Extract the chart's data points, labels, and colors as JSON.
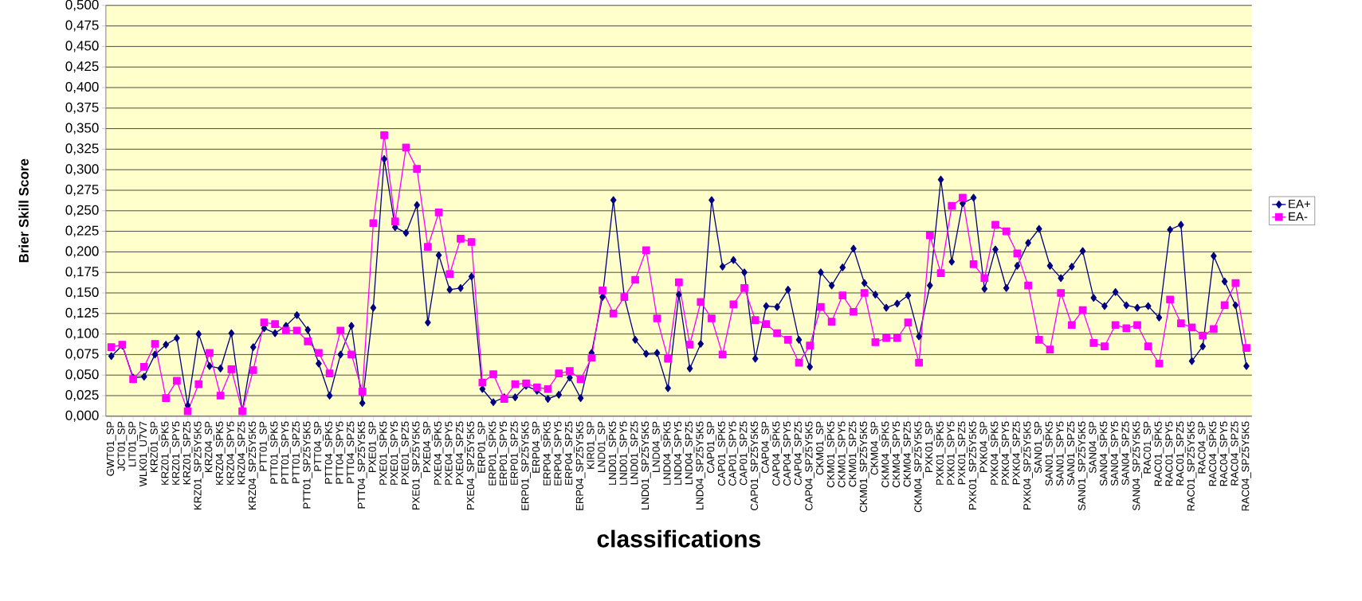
{
  "chart_data": {
    "type": "line",
    "xlabel": "classifications",
    "ylabel": "Brier Skill Score",
    "categories": [
      "GWT01_SP",
      "JCT01_SP",
      "LIT01_SP",
      "WLK01_U7V7",
      "KRZ01_SP",
      "KRZ01_SPK5",
      "KRZ01_SPY5",
      "KRZ01_SPZ5",
      "KRZ01_SPZ5Y5K5",
      "KRZ04_SP",
      "KRZ04_SPK5",
      "KRZ04_SPY5",
      "KRZ04_SPZ5",
      "KRZ04_SPZ5Y5K5",
      "PTT01_SP",
      "PTT01_SPK5",
      "PTT01_SPY5",
      "PTT01_SPZ5",
      "PTT01_SPZ5Y5K5",
      "PTT04_SP",
      "PTT04_SPK5",
      "PTT04_SPY5",
      "PTT04_SPZ5",
      "PTT04_SPZ5Y5K5",
      "PXE01_SP",
      "PXE01_SPK5",
      "PXE01_SPY5",
      "PXE01_SPZ5",
      "PXE01_SPZ5Y5K5",
      "PXE04_SP",
      "PXE04_SPK5",
      "PXE04_SPY5",
      "PXE04_SPZ5",
      "PXE04_SPZ5Y5K5",
      "ERP01_SP",
      "ERP01_SPK5",
      "ERP01_SPY5",
      "ERP01_SPZ5",
      "ERP01_SPZ5Y5K5",
      "ERP04_SP",
      "ERP04_SPK5",
      "ERP04_SPY5",
      "ERP04_SPZ5",
      "ERP04_SPZ5Y5K5",
      "KIR01_SP",
      "LND01_SP",
      "LND01_SPK5",
      "LND01_SPY5",
      "LND01_SPZ5",
      "LND01_SPZ5Y5K5",
      "LND04_SP",
      "LND04_SPK5",
      "LND04_SPY5",
      "LND04_SPZ5",
      "LND04_SPZ5Y5K5",
      "CAP01_SP",
      "CAP01_SPK5",
      "CAP01_SPY5",
      "CAP01_SPZ5",
      "CAP01_SPZ5Y5K5",
      "CAP04_SP",
      "CAP04_SPK5",
      "CAP04_SPY5",
      "CAP04_SPZ5",
      "CAP04_SPZ5Y5K5",
      "CKM01_SP",
      "CKM01_SPK5",
      "CKM01_SPY5",
      "CKM01_SPZ5",
      "CKM01_SPZ5Y5K5",
      "CKM04_SP",
      "CKM04_SPK5",
      "CKM04_SPY5",
      "CKM04_SPZ5",
      "CKM04_SPZ5Y5K5",
      "PXK01_SP",
      "PXK01_SPK5",
      "PXK01_SPY5",
      "PXK01_SPZ5",
      "PXK01_SPZ5Y5K5",
      "PXK04_SP",
      "PXK04_SPK5",
      "PXK04_SPY5",
      "PXK04_SPZ5",
      "PXK04_SPZ5Y5K5",
      "SAN01_SP",
      "SAN01_SPK5",
      "SAN01_SPY5",
      "SAN01_SPZ5",
      "SAN01_SPZ5Y5K5",
      "SAN04_SP",
      "SAN04_SPK5",
      "SAN04_SPY5",
      "SAN04_SPZ5",
      "SAN04_SPZ5Y5K5",
      "RAC01_SP",
      "RAC01_SPK5",
      "RAC01_SPY5",
      "RAC01_SPZ5",
      "RAC01_SPZ5Y5K5",
      "RAC04_SP",
      "RAC04_SPK5",
      "RAC04_SPY5",
      "RAC04_SPZ5",
      "RAC04_SPZ5Y5K5"
    ],
    "series": [
      {
        "name": "EA+",
        "color": "#000080",
        "marker": "diamond",
        "values": [
          0.073,
          0.086,
          0.047,
          0.048,
          0.075,
          0.087,
          0.095,
          0.013,
          0.1,
          0.061,
          0.058,
          0.101,
          0.006,
          0.084,
          0.107,
          0.101,
          0.11,
          0.123,
          0.105,
          0.064,
          0.025,
          0.075,
          0.11,
          0.016,
          0.132,
          0.313,
          0.23,
          0.223,
          0.257,
          0.114,
          0.196,
          0.154,
          0.156,
          0.17,
          0.033,
          0.017,
          0.023,
          0.023,
          0.037,
          0.031,
          0.021,
          0.026,
          0.047,
          0.022,
          0.077,
          0.145,
          0.263,
          0.145,
          0.093,
          0.076,
          0.077,
          0.034,
          0.148,
          0.058,
          0.088,
          0.263,
          0.182,
          0.19,
          0.175,
          0.07,
          0.134,
          0.133,
          0.154,
          0.093,
          0.06,
          0.175,
          0.159,
          0.181,
          0.204,
          0.162,
          0.148,
          0.132,
          0.137,
          0.147,
          0.097,
          0.159,
          0.288,
          0.188,
          0.259,
          0.266,
          0.155,
          0.203,
          0.156,
          0.183,
          0.211,
          0.228,
          0.183,
          0.168,
          0.182,
          0.201,
          0.144,
          0.134,
          0.151,
          0.135,
          0.132,
          0.134,
          0.12,
          0.227,
          0.233,
          0.067,
          0.085,
          0.195,
          0.164,
          0.135,
          0.061
        ]
      },
      {
        "name": "EA-",
        "color": "#ff00ff",
        "marker": "square",
        "values": [
          0.084,
          0.087,
          0.045,
          0.06,
          0.088,
          0.022,
          0.043,
          0.006,
          0.039,
          0.077,
          0.025,
          0.057,
          0.006,
          0.056,
          0.114,
          0.112,
          0.104,
          0.104,
          0.091,
          0.077,
          0.052,
          0.104,
          0.075,
          0.03,
          0.235,
          0.342,
          0.237,
          0.327,
          0.301,
          0.206,
          0.248,
          0.173,
          0.216,
          0.212,
          0.041,
          0.051,
          0.021,
          0.039,
          0.04,
          0.035,
          0.033,
          0.052,
          0.055,
          0.045,
          0.071,
          0.153,
          0.125,
          0.145,
          0.166,
          0.202,
          0.119,
          0.07,
          0.163,
          0.087,
          0.139,
          0.119,
          0.075,
          0.136,
          0.156,
          0.117,
          0.112,
          0.101,
          0.093,
          0.065,
          0.086,
          0.133,
          0.115,
          0.147,
          0.127,
          0.15,
          0.09,
          0.095,
          0.095,
          0.114,
          0.065,
          0.22,
          0.174,
          0.256,
          0.266,
          0.185,
          0.168,
          0.233,
          0.225,
          0.198,
          0.159,
          0.093,
          0.081,
          0.15,
          0.111,
          0.129,
          0.089,
          0.085,
          0.111,
          0.107,
          0.111,
          0.085,
          0.064,
          0.142,
          0.113,
          0.108,
          0.098,
          0.106,
          0.135,
          0.162,
          0.083
        ]
      }
    ],
    "ylim": [
      0,
      0.5
    ],
    "yticks": [
      {
        "value": 0,
        "label": "0,000"
      },
      {
        "value": 0.025,
        "label": "0,025"
      },
      {
        "value": 0.05,
        "label": "0,050"
      },
      {
        "value": 0.075,
        "label": "0,075"
      },
      {
        "value": 0.1,
        "label": "0,100"
      },
      {
        "value": 0.125,
        "label": "0,125"
      },
      {
        "value": 0.15,
        "label": "0,150"
      },
      {
        "value": 0.175,
        "label": "0,175"
      },
      {
        "value": 0.2,
        "label": "0,200"
      },
      {
        "value": 0.225,
        "label": "0,225"
      },
      {
        "value": 0.25,
        "label": "0,250"
      },
      {
        "value": 0.275,
        "label": "0,275"
      },
      {
        "value": 0.3,
        "label": "0,300"
      },
      {
        "value": 0.325,
        "label": "0,325"
      },
      {
        "value": 0.35,
        "label": "0,350"
      },
      {
        "value": 0.375,
        "label": "0,375"
      },
      {
        "value": 0.4,
        "label": "0,400"
      },
      {
        "value": 0.425,
        "label": "0,425"
      },
      {
        "value": 0.45,
        "label": "0,450"
      },
      {
        "value": 0.475,
        "label": "0,475"
      },
      {
        "value": 0.5,
        "label": "0,500"
      }
    ],
    "grid": "y",
    "legend": "right"
  }
}
